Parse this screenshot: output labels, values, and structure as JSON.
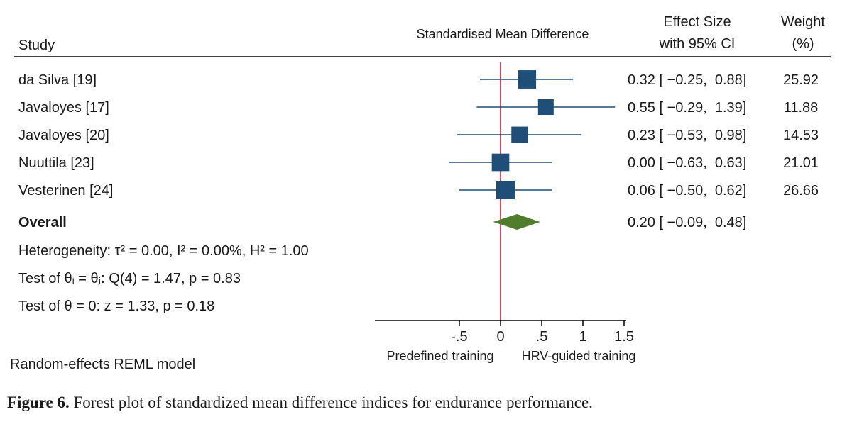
{
  "chart_data": {
    "type": "forest",
    "headers": {
      "study": "Study",
      "plot": "Standardised Mean Difference",
      "effect_line1": "Effect Size",
      "effect_line2": "with 95% CI",
      "weight_line1": "Weight",
      "weight_line2": "(%)"
    },
    "studies": [
      {
        "name": "da Silva [19]",
        "es": 0.32,
        "lo": -0.25,
        "hi": 0.88,
        "ci_text": "0.32 [ −0.25,  0.88]",
        "weight": 25.92,
        "weight_text": "25.92"
      },
      {
        "name": "Javaloyes [17]",
        "es": 0.55,
        "lo": -0.29,
        "hi": 1.39,
        "ci_text": "0.55 [ −0.29,  1.39]",
        "weight": 11.88,
        "weight_text": "11.88"
      },
      {
        "name": "Javaloyes [20]",
        "es": 0.23,
        "lo": -0.53,
        "hi": 0.98,
        "ci_text": "0.23 [ −0.53,  0.98]",
        "weight": 14.53,
        "weight_text": "14.53"
      },
      {
        "name": "Nuuttila [23]",
        "es": 0.0,
        "lo": -0.63,
        "hi": 0.63,
        "ci_text": "0.00 [ −0.63,  0.63]",
        "weight": 21.01,
        "weight_text": "21.01"
      },
      {
        "name": "Vesterinen [24]",
        "es": 0.06,
        "lo": -0.5,
        "hi": 0.62,
        "ci_text": "0.06 [ −0.50,  0.62]",
        "weight": 26.66,
        "weight_text": "26.66"
      }
    ],
    "overall": {
      "name": "Overall",
      "es": 0.2,
      "lo": -0.09,
      "hi": 0.48,
      "ci_text": "0.20 [ −0.09,  0.48]"
    },
    "stats": {
      "heterogeneity": "Heterogeneity: τ² = 0.00, I² = 0.00%, H² = 1.00",
      "test_theta": "Test of θᵢ = θⱼ: Q(4) = 1.47, p = 0.83",
      "test_zero": "Test of θ = 0: z = 1.33, p = 0.18"
    },
    "x_axis": {
      "ticks": [
        -0.5,
        0,
        0.5,
        1,
        1.5
      ],
      "tick_labels": [
        "-.5",
        "0",
        ".5",
        "1",
        "1.5"
      ],
      "xlim": [
        -1.5,
        1.5
      ],
      "left_label": "Predefined training",
      "right_label": "HRV-guided training"
    },
    "model_note": "Random-effects REML model",
    "colors": {
      "study_marker": "#1f4e79",
      "ci_line": "#1f4e79",
      "overall_marker": "#4f7d2c",
      "null_line": "#d9436e",
      "rule": "#000000"
    }
  },
  "caption": {
    "label": "Figure 6.",
    "text": " Forest plot of standardized mean difference indices for endurance performance."
  }
}
